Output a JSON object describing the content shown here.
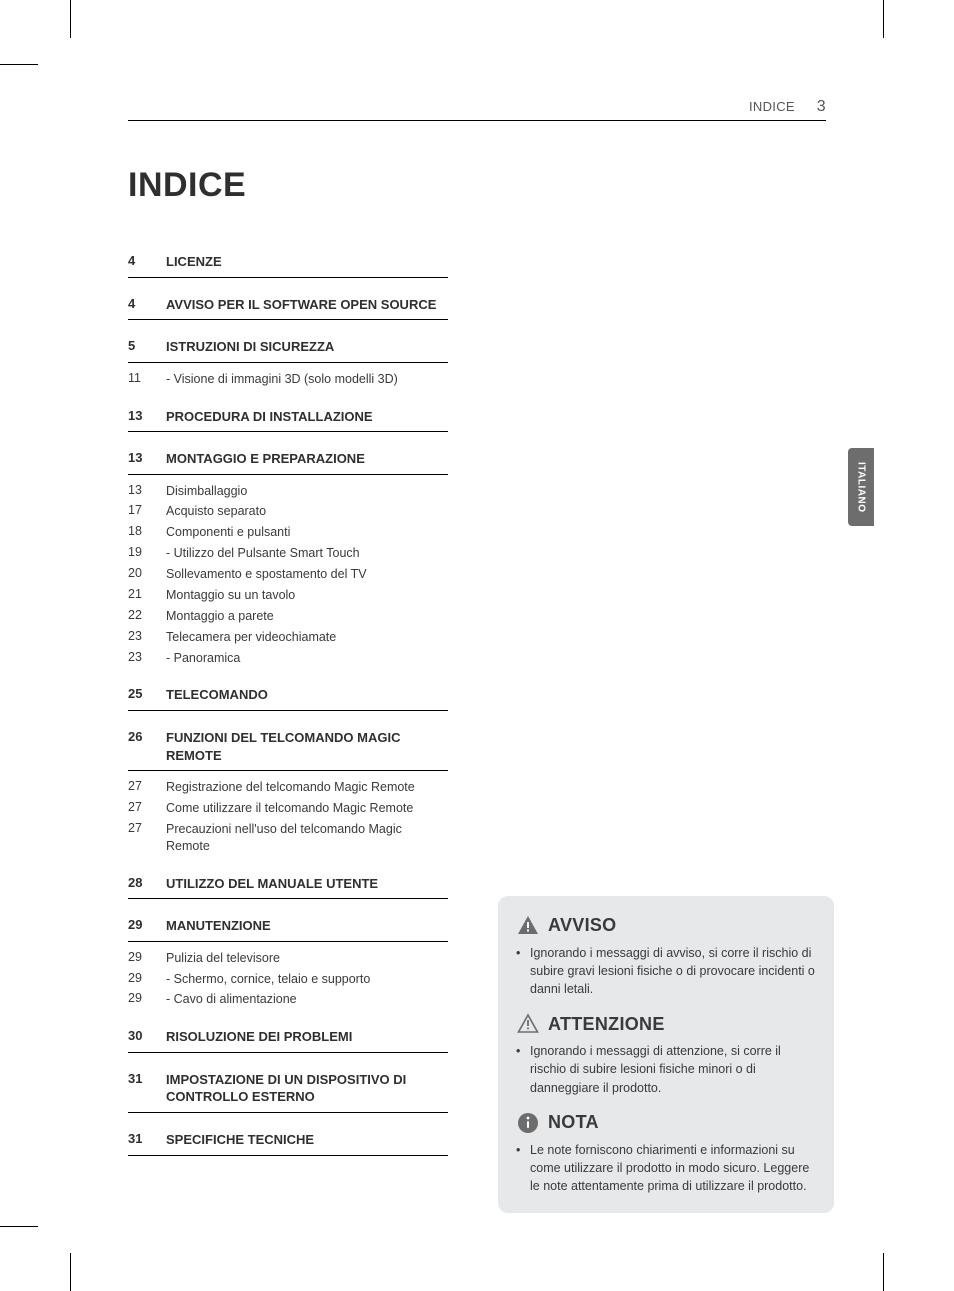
{
  "header": {
    "running": "INDICE",
    "page_number": "3"
  },
  "title": "INDICE",
  "sidetab": "ITALIANO",
  "colors": {
    "text": "#3a3a3a",
    "rule": "#000000",
    "notice_bg": "#e7e8ea",
    "sidetab_bg": "#6d6d6d",
    "sidetab_fg": "#ffffff",
    "warn_fill": "#6d6d6d",
    "caution_stroke": "#6d6d6d",
    "note_fill": "#6d6d6d"
  },
  "typography": {
    "title_fontsize_pt": 26,
    "section_head_fontsize_pt": 10,
    "sub_fontsize_pt": 9.5,
    "notice_head_fontsize_pt": 14,
    "notice_body_fontsize_pt": 9.5
  },
  "sections": [
    {
      "page": "4",
      "title": "LICENZE",
      "subs": []
    },
    {
      "page": "4",
      "title": "AVVISO PER IL SOFTWARE OPEN SOURCE",
      "subs": []
    },
    {
      "page": "5",
      "title": "ISTRUZIONI DI SICUREZZA",
      "subs": [
        {
          "page": "11",
          "label": " - Visione di immagini 3D (solo modelli 3D)"
        }
      ]
    },
    {
      "page": "13",
      "title": "PROCEDURA DI INSTALLAZIONE",
      "subs": []
    },
    {
      "page": "13",
      "title": "MONTAGGIO E PREPARAZIONE",
      "subs": [
        {
          "page": "13",
          "label": "Disimballaggio"
        },
        {
          "page": "17",
          "label": "Acquisto separato"
        },
        {
          "page": "18",
          "label": "Componenti e pulsanti"
        },
        {
          "page": "19",
          "label": " - Utilizzo del Pulsante Smart Touch"
        },
        {
          "page": "20",
          "label": "Sollevamento e spostamento del TV"
        },
        {
          "page": "21",
          "label": "Montaggio su un tavolo"
        },
        {
          "page": "22",
          "label": "Montaggio a parete"
        },
        {
          "page": "23",
          "label": "Telecamera per videochiamate"
        },
        {
          "page": "23",
          "label": " - Panoramica"
        }
      ]
    },
    {
      "page": "25",
      "title": "TELECOMANDO",
      "subs": []
    },
    {
      "page": "26",
      "title": "FUNZIONI DEL TELCOMANDO MAGIC REMOTE",
      "subs": [
        {
          "page": "27",
          "label": "Registrazione del telcomando Magic Remote"
        },
        {
          "page": "27",
          "label": "Come utilizzare il telcomando Magic Remote"
        },
        {
          "page": "27",
          "label": "Precauzioni nell'uso del telcomando Magic Remote"
        }
      ]
    },
    {
      "page": "28",
      "title": "UTILIZZO DEL MANUALE UTENTE",
      "subs": []
    },
    {
      "page": "29",
      "title": "MANUTENZIONE",
      "subs": [
        {
          "page": "29",
          "label": "Pulizia del televisore"
        },
        {
          "page": "29",
          "label": " -  Schermo, cornice, telaio e supporto"
        },
        {
          "page": "29",
          "label": " -  Cavo di alimentazione"
        }
      ]
    },
    {
      "page": "30",
      "title": "RISOLUZIONE DEI PROBLEMI",
      "subs": []
    },
    {
      "page": "31",
      "title": "IMPOSTAZIONE DI UN DISPOSITIVO DI CONTROLLO ESTERNO",
      "subs": []
    },
    {
      "page": "31",
      "title": "SPECIFICHE TECNICHE",
      "subs": []
    }
  ],
  "notices": [
    {
      "icon": "warning-solid",
      "title": "AVVISO",
      "items": [
        "Ignorando i messaggi di avviso, si corre il rischio di subire gravi lesioni fisiche o di provocare incidenti o danni letali."
      ]
    },
    {
      "icon": "warning-outline",
      "title": "ATTENZIONE",
      "items": [
        "Ignorando i messaggi di attenzione, si corre il rischio di subire lesioni fisiche minori o di danneggiare il prodotto."
      ]
    },
    {
      "icon": "note-circle",
      "title": "NOTA",
      "items": [
        "Le note forniscono chiarimenti e informazioni su come utilizzare il prodotto in modo sicuro. Leggere le note attentamente prima di utilizzare il prodotto."
      ]
    }
  ]
}
